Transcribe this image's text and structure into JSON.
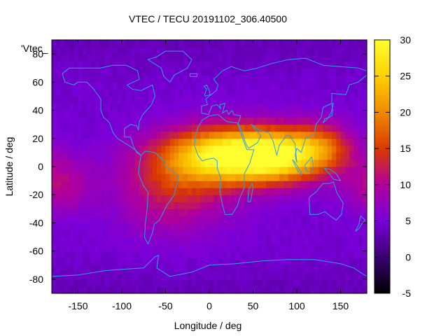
{
  "chart_data": {
    "type": "heatmap",
    "title": "VTEC / TECU 20191102_306.40500",
    "xlabel": "Longitude / deg",
    "ylabel": "Latitude / deg",
    "legend_label": "'Vtec_",
    "xlim": [
      -180,
      180
    ],
    "ylim": [
      -90,
      90
    ],
    "x_ticks": [
      -150,
      -100,
      -50,
      0,
      50,
      100,
      150
    ],
    "y_ticks": [
      -80,
      -60,
      -40,
      -20,
      0,
      20,
      40,
      60,
      80
    ],
    "x_tick_labels": [
      "-150",
      "-100",
      "-50",
      "0",
      "50",
      "100",
      "150"
    ],
    "y_tick_labels": [
      "-80",
      "-60",
      "-40",
      "-20",
      "0",
      "20",
      "40",
      "60",
      "80"
    ],
    "colorbar": {
      "range": [
        -5,
        30
      ],
      "ticks": [
        -5,
        0,
        5,
        10,
        15,
        20,
        25,
        30
      ],
      "tick_labels": [
        "-5",
        "0",
        "5",
        "10",
        "15",
        "20",
        "25",
        "30"
      ]
    },
    "grid_step_deg": 5,
    "field_model": {
      "background": 4.5,
      "peaks": [
        {
          "lon": 25,
          "lat": 8,
          "amp": 24,
          "sigma_lon": 52,
          "sigma_lat": 14
        },
        {
          "lon": 85,
          "lat": 8,
          "amp": 15,
          "sigma_lon": 38,
          "sigma_lat": 13
        },
        {
          "lon": -40,
          "lat": -15,
          "amp": 8,
          "sigma_lon": 45,
          "sigma_lat": 22
        },
        {
          "lon": -170,
          "lat": -12,
          "amp": 6,
          "sigma_lon": 25,
          "sigma_lat": 14
        },
        {
          "lon": 130,
          "lat": 15,
          "amp": 8,
          "sigma_lon": 25,
          "sigma_lat": 12
        }
      ]
    },
    "colors": {
      "coastline": "#2ea0e6",
      "palette": [
        "#000000",
        "#3b0073",
        "#7a00d9",
        "#b1009b",
        "#d93a00",
        "#f08a00",
        "#ffd000",
        "#ffff30"
      ]
    }
  }
}
